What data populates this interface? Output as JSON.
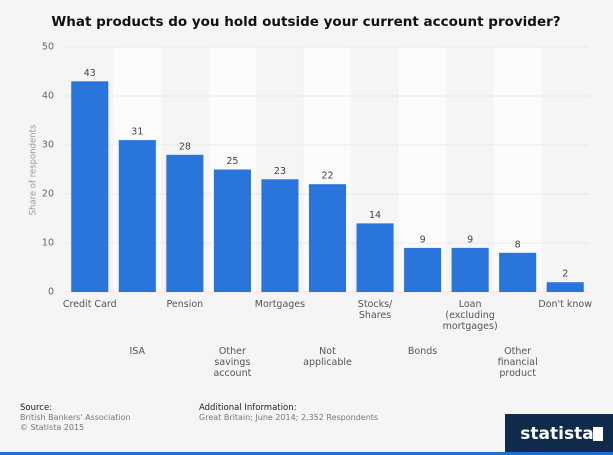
{
  "chart_data": {
    "type": "bar",
    "title": "What products do you hold outside your current account provider?",
    "y_label": "Share of respondents",
    "categories": [
      "Credit Card",
      "ISA",
      "Pension",
      "Other savings account",
      "Mortgages",
      "Not applicable",
      "Stocks/ Shares",
      "Bonds",
      "Loan (excluding mortgages)",
      "Other financial product",
      "Don't know"
    ],
    "values": [
      43,
      31,
      28,
      25,
      23,
      22,
      14,
      9,
      9,
      8,
      2
    ],
    "color": "#2a75dc",
    "ylim": [
      0,
      50
    ],
    "yticks": [
      0,
      10,
      20,
      30,
      40,
      50
    ],
    "grid": true
  },
  "footer": {
    "source_heading": "Source:",
    "source": "British Bankers' Association",
    "copyright": "© Statista 2015",
    "info_heading": "Additional Information:",
    "info": "Great Britain; June 2014; 2,352 Respondents",
    "logo": "statista"
  }
}
